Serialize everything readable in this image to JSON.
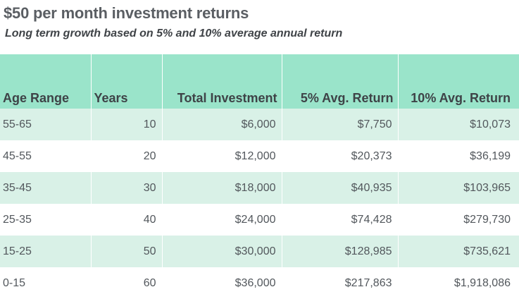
{
  "title": "$50 per month investment returns",
  "subtitle": "Long term growth based on 5% and 10% average annual return",
  "table": {
    "headers": [
      "Age Range",
      "Years",
      "Total Investment",
      "5% Avg. Return",
      "10% Avg. Return"
    ],
    "rows": [
      [
        "55-65",
        "10",
        "$6,000",
        "$7,750",
        "$10,073"
      ],
      [
        "45-55",
        "20",
        "$12,000",
        "$20,373",
        "$36,199"
      ],
      [
        "35-45",
        "30",
        "$18,000",
        "$40,935",
        "$103,965"
      ],
      [
        "25-35",
        "40",
        "$24,000",
        "$74,428",
        "$279,730"
      ],
      [
        "15-25",
        "50",
        "$30,000",
        "$128,985",
        "$735,621"
      ],
      [
        "0-15",
        "60",
        "$36,000",
        "$217,863",
        "$1,918,086"
      ]
    ]
  },
  "colors": {
    "header_bg": "#9ae4ca",
    "row_shade": "#d9f1e7",
    "text": "#52575c"
  }
}
